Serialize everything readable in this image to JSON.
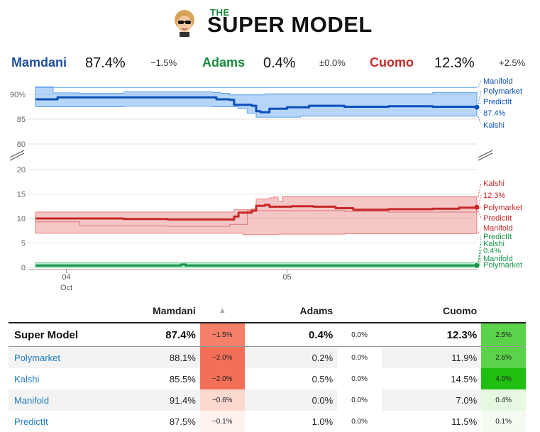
{
  "header": {
    "logo_small": "THE",
    "logo_main": "SUPER MODEL"
  },
  "summary": [
    {
      "name": "Mamdani",
      "value": "87.4%",
      "change": "−1.5%",
      "color": "#1f4e9c"
    },
    {
      "name": "Adams",
      "value": "0.4%",
      "change": "±0.0%",
      "color": "#1a8a3c"
    },
    {
      "name": "Cuomo",
      "value": "12.3%",
      "change": "+2.5%",
      "color": "#c62828"
    }
  ],
  "chart_data": {
    "type": "line",
    "upper_axis": {
      "ticks": [
        80,
        85,
        90
      ],
      "labels": [
        "80",
        "85",
        "90%"
      ]
    },
    "lower_axis": {
      "ticks": [
        0,
        5,
        10,
        15,
        20
      ],
      "labels": [
        "0",
        "5",
        "10",
        "15",
        "20"
      ]
    },
    "x_ticks": [
      {
        "t": 0.07,
        "label": "04",
        "sublabel": "Oct"
      },
      {
        "t": 0.57,
        "label": "05",
        "sublabel": ""
      }
    ],
    "series": [
      {
        "name": "Mamdani",
        "color": "#0b4fb8",
        "band_color": "#5ea2f0",
        "line": [
          [
            0,
            89.0
          ],
          [
            0.05,
            89.0
          ],
          [
            0.05,
            89.4
          ],
          [
            0.4,
            89.4
          ],
          [
            0.41,
            89.0
          ],
          [
            0.44,
            88.9
          ],
          [
            0.45,
            87.9
          ],
          [
            0.49,
            87.7
          ],
          [
            0.5,
            86.6
          ],
          [
            0.51,
            86.4
          ],
          [
            0.53,
            87.1
          ],
          [
            0.57,
            87.4
          ],
          [
            0.62,
            87.7
          ],
          [
            0.7,
            87.5
          ],
          [
            0.8,
            87.6
          ],
          [
            0.9,
            87.5
          ],
          [
            1.0,
            87.4
          ]
        ],
        "band_upper": [
          [
            0,
            91.5
          ],
          [
            0.03,
            91.5
          ],
          [
            0.04,
            90.3
          ],
          [
            0.1,
            90.2
          ],
          [
            0.2,
            90.5
          ],
          [
            0.4,
            90.4
          ],
          [
            0.42,
            90.2
          ],
          [
            0.44,
            89.9
          ],
          [
            0.5,
            89.9
          ],
          [
            0.52,
            90.1
          ],
          [
            0.6,
            90.1
          ],
          [
            0.7,
            90.1
          ],
          [
            0.9,
            90.4
          ],
          [
            1.0,
            90.3
          ]
        ],
        "band_lower": [
          [
            0,
            87.5
          ],
          [
            0.2,
            87.6
          ],
          [
            0.4,
            87.5
          ],
          [
            0.46,
            87.1
          ],
          [
            0.48,
            86.2
          ],
          [
            0.5,
            85.4
          ],
          [
            0.6,
            85.6
          ],
          [
            0.8,
            85.6
          ],
          [
            1.0,
            85.5
          ]
        ],
        "band_top": [
          [
            0,
            91.4
          ],
          [
            1.0,
            91.4
          ]
        ],
        "labels": [
          {
            "text": "Manifold",
            "v": 91.4,
            "y": 118
          },
          {
            "text": "Polymarket",
            "v": 88.1,
            "y": 132
          },
          {
            "text": "PredictIt",
            "v": 87.5,
            "y": 147
          },
          {
            "text": "87.4%",
            "v": 87.4,
            "y": 163
          },
          {
            "text": "Kalshi",
            "v": 85.5,
            "y": 180
          }
        ]
      },
      {
        "name": "Cuomo",
        "color": "#c62828",
        "band_color": "#e88080",
        "line": [
          [
            0,
            10.0
          ],
          [
            0.2,
            9.9
          ],
          [
            0.3,
            9.8
          ],
          [
            0.44,
            9.8
          ],
          [
            0.45,
            10.4
          ],
          [
            0.46,
            11.2
          ],
          [
            0.49,
            11.6
          ],
          [
            0.5,
            12.6
          ],
          [
            0.52,
            12.8
          ],
          [
            0.53,
            12.4
          ],
          [
            0.58,
            12.5
          ],
          [
            0.63,
            12.4
          ],
          [
            0.68,
            12.1
          ],
          [
            0.72,
            11.8
          ],
          [
            0.8,
            11.9
          ],
          [
            0.9,
            12.0
          ],
          [
            0.96,
            12.2
          ],
          [
            1.0,
            12.3
          ]
        ],
        "band_upper": [
          [
            0,
            11.3
          ],
          [
            0.44,
            11.3
          ],
          [
            0.45,
            11.8
          ],
          [
            0.49,
            12.0
          ],
          [
            0.5,
            14.0
          ],
          [
            0.53,
            14.2
          ],
          [
            0.54,
            14.4
          ],
          [
            0.55,
            13.5
          ],
          [
            0.56,
            14.5
          ],
          [
            1.0,
            14.5
          ]
        ],
        "band_lower": [
          [
            0,
            7.0
          ],
          [
            0.46,
            7.0
          ],
          [
            0.47,
            6.7
          ],
          [
            0.55,
            6.8
          ],
          [
            0.7,
            6.9
          ],
          [
            1.0,
            7.0
          ]
        ],
        "band_mid": [
          [
            0,
            9.3
          ],
          [
            0.07,
            9.3
          ],
          [
            0.1,
            8.5
          ],
          [
            0.3,
            8.4
          ],
          [
            0.44,
            8.8
          ],
          [
            0.48,
            11.6
          ],
          [
            0.6,
            11.6
          ],
          [
            0.7,
            11.4
          ],
          [
            0.8,
            11.3
          ],
          [
            1.0,
            11.9
          ]
        ],
        "labels": [
          {
            "text": "Kalshi",
            "v": 14.5,
            "y": 262
          },
          {
            "text": "12.3%",
            "v": 12.3,
            "y": 279
          },
          {
            "text": "Polymarket",
            "v": 11.9,
            "y": 296
          },
          {
            "text": "PredictIt",
            "v": 11.5,
            "y": 311
          },
          {
            "text": "Manifold",
            "v": 7.0,
            "y": 325
          }
        ]
      },
      {
        "name": "Adams",
        "color": "#17944a",
        "band_color": "#6fd39a",
        "line": [
          [
            0,
            0.4
          ],
          [
            0.32,
            0.4
          ],
          [
            0.33,
            0.6
          ],
          [
            0.34,
            0.4
          ],
          [
            1.0,
            0.4
          ]
        ],
        "band_upper": [
          [
            0,
            1.0
          ],
          [
            1.0,
            1.0
          ]
        ],
        "band_lower": [
          [
            0,
            0.0
          ],
          [
            1.0,
            0.0
          ]
        ],
        "labels": [
          {
            "text": "PredictIt",
            "v": 1.0,
            "y": 337
          },
          {
            "text": "Kalshi",
            "v": 0.5,
            "y": 347
          },
          {
            "text": "0.4%",
            "v": 0.4,
            "y": 357
          },
          {
            "text": "Manifold",
            "v": 0.0,
            "y": 368
          },
          {
            "text": "Polymarket",
            "v": 0.2,
            "y": 377
          }
        ]
      }
    ]
  },
  "table": {
    "headers": {
      "mamdani": "Mamdani",
      "sort": "▲",
      "adams": "Adams",
      "cuomo": "Cuomo"
    },
    "rows": [
      {
        "name": "Super Model",
        "mamdani": "87.4%",
        "m_chg": "−1.5%",
        "adams": "0.4%",
        "a_chg": "0.0%",
        "cuomo": "12.3%",
        "c_chg": "2.5%",
        "m_bg": "#f5806a",
        "c_bg": "#5ad24a"
      },
      {
        "name": "Polymarket",
        "mamdani": "88.1%",
        "m_chg": "−2.0%",
        "adams": "0.2%",
        "a_chg": "0.0%",
        "cuomo": "11.9%",
        "c_chg": "2.6%",
        "m_bg": "#f46f57",
        "c_bg": "#5ad24a"
      },
      {
        "name": "Kalshi",
        "mamdani": "85.5%",
        "m_chg": "−2.0%",
        "adams": "0.5%",
        "a_chg": "0.0%",
        "cuomo": "14.5%",
        "c_chg": "4.0%",
        "m_bg": "#f46f57",
        "c_bg": "#1fbf10"
      },
      {
        "name": "Manifold",
        "mamdani": "91.4%",
        "m_chg": "−0.6%",
        "adams": "0.0%",
        "a_chg": "0.0%",
        "cuomo": "7.0%",
        "c_chg": "0.4%",
        "m_bg": "#fcd8cf",
        "c_bg": "#e6f8e2"
      },
      {
        "name": "PredictIt",
        "mamdani": "87.5%",
        "m_chg": "−0.1%",
        "adams": "1.0%",
        "a_chg": "0.0%",
        "cuomo": "11.5%",
        "c_chg": "0.1%",
        "m_bg": "#fff3f0",
        "c_bg": "#f4fcf2"
      }
    ]
  }
}
